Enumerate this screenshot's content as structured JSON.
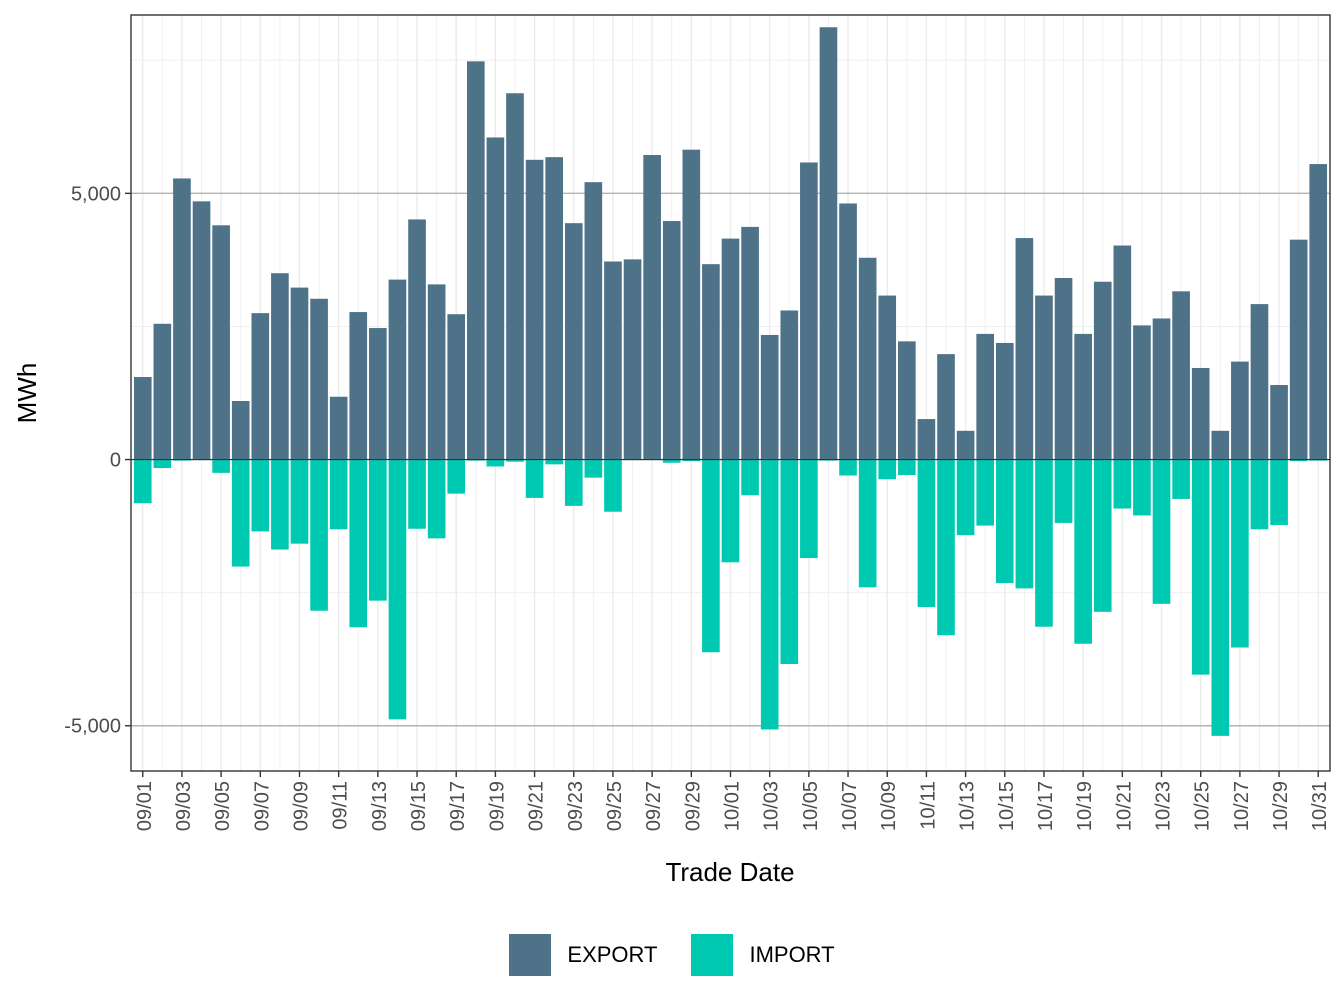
{
  "chart_data": {
    "type": "bar",
    "stacked": "diverging",
    "xlabel": "Trade Date",
    "ylabel": "MWh",
    "ylim": [
      -5850,
      8350
    ],
    "y_ticks": [
      -5000,
      0,
      5000
    ],
    "y_tick_labels": [
      "-5,000",
      "0",
      "5,000"
    ],
    "grid": true,
    "legend_position": "bottom",
    "categories": [
      "09/01",
      "09/02",
      "09/03",
      "09/04",
      "09/05",
      "09/06",
      "09/07",
      "09/08",
      "09/09",
      "09/10",
      "09/11",
      "09/12",
      "09/13",
      "09/14",
      "09/15",
      "09/16",
      "09/17",
      "09/18",
      "09/19",
      "09/20",
      "09/21",
      "09/22",
      "09/23",
      "09/24",
      "09/25",
      "09/26",
      "09/27",
      "09/28",
      "09/29",
      "09/30",
      "10/01",
      "10/02",
      "10/03",
      "10/04",
      "10/05",
      "10/06",
      "10/07",
      "10/08",
      "10/09",
      "10/10",
      "10/11",
      "10/12",
      "10/13",
      "10/14",
      "10/15",
      "10/16",
      "10/17",
      "10/18",
      "10/19",
      "10/20",
      "10/21",
      "10/22",
      "10/23",
      "10/24",
      "10/25",
      "10/26",
      "10/27",
      "10/28",
      "10/29",
      "10/30",
      "10/31"
    ],
    "x_tick_labels": [
      "09/01",
      "09/03",
      "09/05",
      "09/07",
      "09/09",
      "09/11",
      "09/13",
      "09/15",
      "09/17",
      "09/19",
      "09/21",
      "09/23",
      "09/25",
      "09/27",
      "09/29",
      "10/01",
      "10/03",
      "10/05",
      "10/07",
      "10/09",
      "10/11",
      "10/13",
      "10/15",
      "10/17",
      "10/19",
      "10/21",
      "10/23",
      "10/25",
      "10/27",
      "10/29",
      "10/31"
    ],
    "series": [
      {
        "name": "EXPORT",
        "color": "#4e7287",
        "values": [
          1550,
          2550,
          5280,
          4850,
          4400,
          1100,
          2750,
          3500,
          3230,
          3020,
          1180,
          2770,
          2470,
          3380,
          4510,
          3290,
          2730,
          7480,
          6050,
          6880,
          5630,
          5680,
          4440,
          5210,
          3720,
          3760,
          5720,
          4480,
          5820,
          3670,
          4150,
          4370,
          2340,
          2800,
          5580,
          8120,
          4810,
          3790,
          3080,
          2220,
          760,
          1980,
          540,
          2360,
          2190,
          4160,
          3080,
          3410,
          2360,
          3340,
          4020,
          2520,
          2650,
          3160,
          1720,
          540,
          1840,
          2920,
          1400,
          4130,
          5550
        ]
      },
      {
        "name": "IMPORT",
        "color": "#00c9b1",
        "values": [
          -820,
          -160,
          -20,
          -10,
          -250,
          -2010,
          -1350,
          -1690,
          -1580,
          -2840,
          -1310,
          -3150,
          -2650,
          -4880,
          -1300,
          -1480,
          -640,
          -20,
          -130,
          -40,
          -720,
          -90,
          -870,
          -340,
          -980,
          -10,
          -10,
          -60,
          -30,
          -3620,
          -1930,
          -670,
          -5070,
          -3840,
          -1850,
          -20,
          -300,
          -2400,
          -370,
          -290,
          -2770,
          -3300,
          -1420,
          -1240,
          -2320,
          -2420,
          -3140,
          -1190,
          -3460,
          -2860,
          -920,
          -1050,
          -2710,
          -740,
          -4040,
          -5190,
          -3530,
          -1310,
          -1230,
          -30,
          -20
        ]
      }
    ]
  }
}
